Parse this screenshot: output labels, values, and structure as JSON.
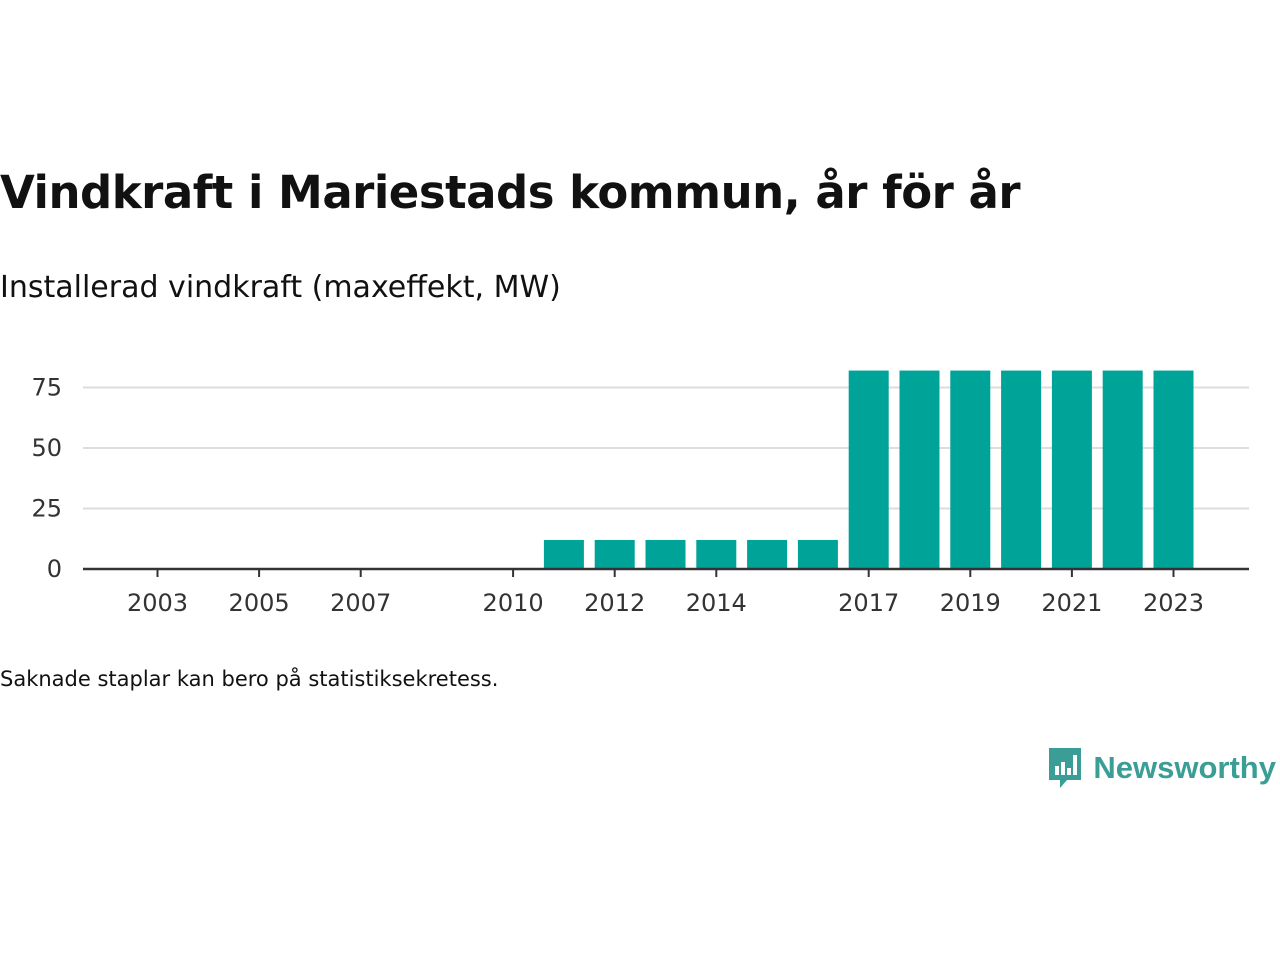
{
  "title": "Vindkraft i Mariestads kommun, år för år",
  "subtitle": "Installerad vindkraft (maxeffekt, MW)",
  "footnote": "Saknade staplar kan bero på statistiksekretess.",
  "brand": {
    "name": "Newsworthy",
    "icon": "newsworthy-logo-icon"
  },
  "colors": {
    "bar": "#00a398",
    "grid": "#dddddd",
    "axis": "#333333",
    "brand": "#3a9e96"
  },
  "chart_data": {
    "type": "bar",
    "title": "Vindkraft i Mariestads kommun, år för år",
    "subtitle": "Installerad vindkraft (maxeffekt, MW)",
    "xlabel": "",
    "ylabel": "",
    "ylim": [
      0,
      82
    ],
    "grid": true,
    "yticks": [
      0,
      25,
      50,
      75
    ],
    "xticks": [
      "2003",
      "2005",
      "2007",
      "2010",
      "2012",
      "2014",
      "2017",
      "2019",
      "2021",
      "2023"
    ],
    "categories": [
      "2003",
      "2004",
      "2005",
      "2006",
      "2007",
      "2008",
      "2009",
      "2010",
      "2011",
      "2012",
      "2013",
      "2014",
      "2015",
      "2016",
      "2017",
      "2018",
      "2019",
      "2020",
      "2021",
      "2022",
      "2023"
    ],
    "values": [
      null,
      null,
      null,
      null,
      null,
      null,
      null,
      null,
      12,
      12,
      12,
      12,
      12,
      12,
      82,
      82,
      82,
      82,
      82,
      82,
      82
    ]
  }
}
